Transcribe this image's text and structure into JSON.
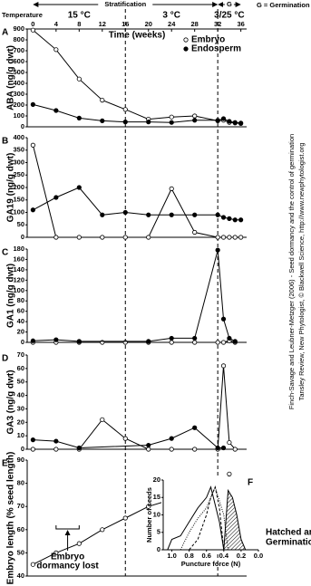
{
  "header": {
    "temperature_label": "Temperature",
    "phases": [
      {
        "label": "15 °C",
        "start": 0,
        "end": 16
      },
      {
        "label": "3 °C",
        "start": 16,
        "end": 32
      },
      {
        "label": "3/25 °C",
        "start": 32,
        "end": 36
      }
    ],
    "stratification": {
      "label": "Stratification",
      "start": 0,
      "end": 32
    },
    "germination": {
      "label": "G",
      "start": 32,
      "end": 36
    },
    "legend_note": "G = Germination"
  },
  "citation": [
    "Finch-Savage and Leubner-Metzger (2006) - Seed dormancy and the control of germination",
    "Tansley Review, New Phytologist, © Blackwell Science, http://www.newphytologist.org"
  ],
  "chart_data": [
    {
      "type": "line",
      "panel_label": "A",
      "x_label": "Time (weeks)",
      "y_label": "ABA (ng/g dwt)",
      "xlim": [
        -1,
        37
      ],
      "xticks": [
        0,
        4,
        8,
        12,
        16,
        20,
        24,
        28,
        32,
        36
      ],
      "ylim": [
        0,
        900
      ],
      "yticks": [
        0,
        100,
        200,
        300,
        400,
        500,
        600,
        700,
        800,
        900
      ],
      "legend": "upper right",
      "series": [
        {
          "name": "Embryo",
          "marker": "open",
          "color": "#000000",
          "x": [
            0,
            4,
            8,
            12,
            16,
            20,
            24,
            28,
            32,
            33,
            34,
            35,
            36
          ],
          "values": [
            890,
            710,
            440,
            245,
            160,
            70,
            90,
            100,
            55,
            60,
            40,
            35,
            30
          ]
        },
        {
          "name": "Endosperm",
          "marker": "filled",
          "color": "#000000",
          "x": [
            0,
            4,
            8,
            12,
            16,
            20,
            24,
            28,
            32,
            33,
            34,
            35,
            36
          ],
          "values": [
            205,
            150,
            80,
            55,
            45,
            45,
            40,
            60,
            60,
            75,
            50,
            40,
            35
          ]
        }
      ]
    },
    {
      "type": "line",
      "panel_label": "B",
      "y_label": "GA19 (ng/g dwt)",
      "xlim": [
        -1,
        37
      ],
      "ylim": [
        0,
        400
      ],
      "yticks": [
        0,
        50,
        100,
        150,
        200,
        250,
        300,
        350,
        400
      ],
      "series": [
        {
          "marker": "open",
          "color": "#000000",
          "x": [
            0,
            4,
            8,
            12,
            16,
            20,
            24,
            28,
            32,
            33,
            34,
            35,
            36
          ],
          "values": [
            370,
            0,
            0,
            0,
            0,
            0,
            195,
            20,
            0,
            0,
            0,
            0,
            0
          ]
        },
        {
          "marker": "filled",
          "color": "#000000",
          "x": [
            0,
            4,
            8,
            12,
            16,
            20,
            24,
            28,
            32,
            33,
            34,
            35,
            36
          ],
          "values": [
            110,
            160,
            200,
            90,
            100,
            90,
            90,
            90,
            90,
            80,
            75,
            70,
            70
          ]
        }
      ]
    },
    {
      "type": "line",
      "panel_label": "C",
      "y_label": "GA1 (ng/g dwt)",
      "xlim": [
        -1,
        37
      ],
      "ylim": [
        0,
        180
      ],
      "yticks": [
        0,
        20,
        40,
        60,
        80,
        100,
        120,
        140,
        160,
        180
      ],
      "series": [
        {
          "marker": "open",
          "color": "#000000",
          "x": [
            0,
            4,
            8,
            12,
            16,
            20,
            24,
            28,
            32,
            33,
            34,
            35
          ],
          "values": [
            0,
            0,
            0,
            0,
            0,
            0,
            0,
            0,
            0,
            0,
            3,
            0
          ]
        },
        {
          "marker": "filled",
          "color": "#000000",
          "x": [
            0,
            4,
            8,
            20,
            24,
            28,
            32,
            33,
            34,
            35
          ],
          "values": [
            3,
            5,
            2,
            2,
            8,
            8,
            178,
            45,
            8,
            2
          ]
        }
      ]
    },
    {
      "type": "line",
      "panel_label": "D",
      "y_label": "GA3 (ng/g dwt)",
      "xlim": [
        -1,
        37
      ],
      "ylim": [
        0,
        70
      ],
      "yticks": [
        0,
        10,
        20,
        30,
        40,
        50,
        60,
        70
      ],
      "series": [
        {
          "marker": "open",
          "color": "#000000",
          "x": [
            0,
            4,
            8,
            12,
            16,
            20,
            24,
            28,
            32,
            33,
            34,
            35
          ],
          "values": [
            0,
            0,
            0,
            22,
            8,
            0,
            0,
            0,
            0,
            62,
            5,
            0
          ]
        },
        {
          "marker": "filled",
          "color": "#000000",
          "x": [
            0,
            4,
            8,
            20,
            24,
            28,
            32,
            33
          ],
          "values": [
            7,
            6,
            1,
            3,
            8,
            16,
            1,
            1
          ]
        }
      ]
    },
    {
      "type": "line",
      "panel_label": "E",
      "y_label": "Embryo length (% seed length)",
      "xlim": [
        -1,
        37
      ],
      "ylim": [
        40,
        90
      ],
      "yticks": [
        40,
        50,
        60,
        70,
        80,
        90
      ],
      "annotation": [
        "Embryo",
        "dormancy lost"
      ],
      "annotation_span": [
        4,
        8
      ],
      "series": [
        {
          "marker": "open",
          "color": "#000000",
          "x": [
            0,
            4,
            8,
            12,
            16,
            20,
            24,
            28,
            32,
            33,
            34
          ],
          "values": [
            45,
            50,
            54,
            60,
            65,
            70,
            73,
            79,
            79,
            77,
            84
          ]
        }
      ]
    },
    {
      "type": "line",
      "panel_label": "F",
      "x_label": "Puncture force (N)",
      "y_label": "Number of seeds",
      "xlim": [
        1.1,
        0
      ],
      "xticks": [
        {
          "value": 1,
          "label": "1.0"
        },
        0.8,
        0.6,
        0.4,
        0.2,
        {
          "value": 0,
          "label": "0.0"
        }
      ],
      "ylim": [
        0,
        20
      ],
      "yticks": [
        0,
        5,
        10,
        15,
        20
      ],
      "note": [
        "Hatched area =",
        "Germination"
      ],
      "series": [
        {
          "dash": "solid",
          "color": "#000000",
          "x": [
            1.05,
            1.0,
            0.9,
            0.8,
            0.7,
            0.6,
            0.55,
            0.45,
            0.4
          ],
          "values": [
            0,
            3,
            4,
            8,
            12,
            15,
            18,
            8,
            0
          ]
        },
        {
          "dash": "dotted",
          "color": "#000000",
          "x": [
            0.9,
            0.8,
            0.7,
            0.6,
            0.5,
            0.4,
            0.35
          ],
          "values": [
            0,
            5,
            9,
            12,
            18,
            10,
            0
          ]
        },
        {
          "dash": "dashed",
          "color": "#000000",
          "x": [
            0.8,
            0.7,
            0.6,
            0.55,
            0.5,
            0.45,
            0.4
          ],
          "values": [
            0,
            3,
            10,
            15,
            18,
            12,
            0
          ]
        },
        {
          "dash": "solid",
          "hatched": true,
          "color": "#000000",
          "x": [
            0.4,
            0.35,
            0.3,
            0.25,
            0.2,
            0.15
          ],
          "values": [
            0,
            17,
            15,
            10,
            3,
            0
          ]
        }
      ]
    }
  ]
}
